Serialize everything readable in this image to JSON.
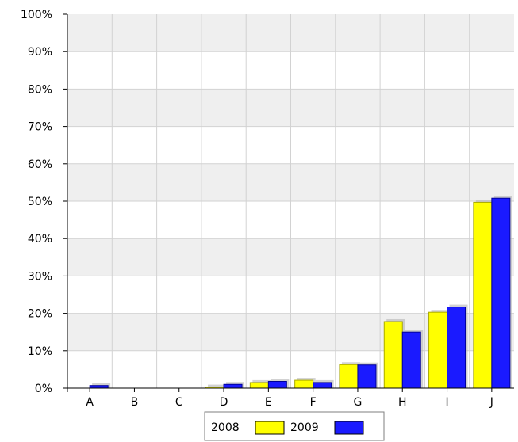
{
  "chart_data": {
    "type": "bar",
    "categories": [
      "A",
      "B",
      "C",
      "D",
      "E",
      "F",
      "G",
      "H",
      "I",
      "J"
    ],
    "series": [
      {
        "name": "2008",
        "values": [
          0,
          0,
          0,
          0.3,
          1.5,
          2.1,
          6.3,
          17.8,
          20.3,
          49.7
        ]
      },
      {
        "name": "2009",
        "values": [
          0.7,
          0,
          0,
          1.0,
          1.8,
          1.5,
          6.2,
          15.0,
          21.7,
          50.8
        ]
      }
    ],
    "ylim": [
      0,
      100
    ],
    "yticks": [
      "0%",
      "10%",
      "20%",
      "30%",
      "40%",
      "50%",
      "60%",
      "70%",
      "80%",
      "90%",
      "100%"
    ],
    "grid": true,
    "legend": "bottom",
    "colors": {
      "series": [
        "#ffff00",
        "#1a1aff"
      ],
      "series_outline": [
        "#a8a800",
        "#000099"
      ],
      "band": "#efefef",
      "gridline": "#d2d2d2"
    }
  }
}
